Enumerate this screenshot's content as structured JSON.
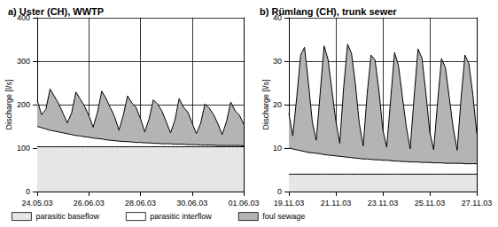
{
  "chart_data": [
    {
      "type": "area",
      "title": "a) Uster (CH), WWTP",
      "y_label": "Discharge [l/s]",
      "categories": [
        "24.05.03",
        null,
        null,
        null,
        null,
        null,
        null,
        null,
        null,
        null,
        null,
        null,
        "26.06.03",
        null,
        null,
        null,
        null,
        null,
        null,
        null,
        null,
        null,
        null,
        null,
        "28.06.03",
        null,
        null,
        null,
        null,
        null,
        null,
        null,
        null,
        null,
        null,
        null,
        "30.06.03",
        null,
        null,
        null,
        null,
        null,
        null,
        null,
        null,
        null,
        null,
        null,
        "01.06.03"
      ],
      "series": [
        {
          "name": "parasitic baseflow",
          "color": "#e6e6e6",
          "values": [
            103,
            103,
            103,
            103,
            103,
            103,
            103,
            103,
            103,
            103,
            103,
            103,
            103,
            103,
            103,
            103,
            103,
            103,
            103,
            103,
            103,
            103,
            103,
            103,
            103,
            103,
            103,
            103,
            103,
            103,
            103,
            103,
            103,
            103,
            103,
            103,
            103,
            103,
            103,
            103,
            103,
            103,
            103,
            103,
            103,
            103,
            103,
            103,
            103
          ]
        },
        {
          "name": "parasitic interflow",
          "color": "#ffffff",
          "values": [
            47,
            44,
            41,
            38,
            36,
            34,
            32,
            30,
            28,
            26,
            25,
            23,
            22,
            20,
            19,
            18,
            16,
            15,
            14,
            13,
            12,
            12,
            11,
            10,
            10,
            9,
            9,
            8,
            8,
            7,
            7,
            7,
            6,
            6,
            6,
            5,
            5,
            5,
            4,
            4,
            4,
            4,
            3,
            3,
            3,
            3,
            3,
            3,
            2
          ]
        },
        {
          "name": "foul sewage",
          "color": "#b4b4b4",
          "values": [
            60,
            30,
            45,
            95,
            80,
            65,
            45,
            25,
            50,
            100,
            85,
            70,
            50,
            25,
            60,
            110,
            95,
            75,
            55,
            25,
            60,
            105,
            90,
            80,
            55,
            25,
            55,
            100,
            90,
            75,
            50,
            25,
            55,
            105,
            85,
            75,
            50,
            25,
            50,
            95,
            85,
            70,
            50,
            25,
            55,
            100,
            80,
            70,
            50
          ]
        }
      ],
      "ylim": [
        0,
        400
      ],
      "yticks": [
        0,
        100,
        200,
        300,
        400
      ],
      "stacked": true,
      "grid": true,
      "legend": "bottom"
    },
    {
      "type": "area",
      "title": "b) Rümlang (CH), trunk sewer",
      "y_label": "Discharge [l/s]",
      "categories": [
        "19.11.03",
        null,
        null,
        null,
        null,
        null,
        null,
        null,
        null,
        null,
        null,
        null,
        "21.11.03",
        null,
        null,
        null,
        null,
        null,
        null,
        null,
        null,
        null,
        null,
        null,
        "23.11.03",
        null,
        null,
        null,
        null,
        null,
        null,
        null,
        null,
        null,
        null,
        null,
        "25.11.03",
        null,
        null,
        null,
        null,
        null,
        null,
        null,
        null,
        null,
        null,
        null,
        "27.11.03"
      ],
      "series": [
        {
          "name": "parasitic baseflow",
          "color": "#e6e6e6",
          "values": [
            4,
            4,
            4,
            4,
            4,
            4,
            4,
            4,
            4,
            4,
            4,
            4,
            4,
            4,
            4,
            4,
            4,
            4,
            4,
            4,
            4,
            4,
            4,
            4,
            4,
            4,
            4,
            4,
            4,
            4,
            4,
            4,
            4,
            4,
            4,
            4,
            4,
            4,
            4,
            4,
            4,
            4,
            4,
            4,
            4,
            4,
            4,
            4,
            4
          ]
        },
        {
          "name": "parasitic interflow",
          "color": "#ffffff",
          "values": [
            6.0,
            5.8,
            5.6,
            5.4,
            5.2,
            5.0,
            4.9,
            4.8,
            4.7,
            4.5,
            4.4,
            4.3,
            4.2,
            4.1,
            4.0,
            3.9,
            3.8,
            3.7,
            3.6,
            3.5,
            3.5,
            3.4,
            3.3,
            3.3,
            3.2,
            3.2,
            3.1,
            3.0,
            3.0,
            2.9,
            2.9,
            2.8,
            2.8,
            2.8,
            2.7,
            2.7,
            2.7,
            2.6,
            2.6,
            2.6,
            2.5,
            2.5,
            2.5,
            2.5,
            2.5,
            2.4,
            2.4,
            2.4,
            2.4
          ]
        },
        {
          "name": "foul sewage",
          "color": "#b4b4b4",
          "values": [
            8,
            3,
            12,
            22,
            24,
            16,
            7,
            3,
            14,
            25,
            22,
            15,
            8,
            3,
            16,
            26,
            24,
            17,
            8,
            3,
            15,
            24,
            23,
            16,
            7,
            3,
            14,
            25,
            22,
            15,
            8,
            3,
            15,
            26,
            24,
            16,
            7,
            3,
            14,
            24,
            22,
            15,
            8,
            3,
            15,
            25,
            23,
            16,
            7
          ]
        }
      ],
      "ylim": [
        0,
        40
      ],
      "yticks": [
        0,
        10,
        20,
        30,
        40
      ],
      "stacked": true,
      "grid": true,
      "legend": "bottom"
    }
  ]
}
